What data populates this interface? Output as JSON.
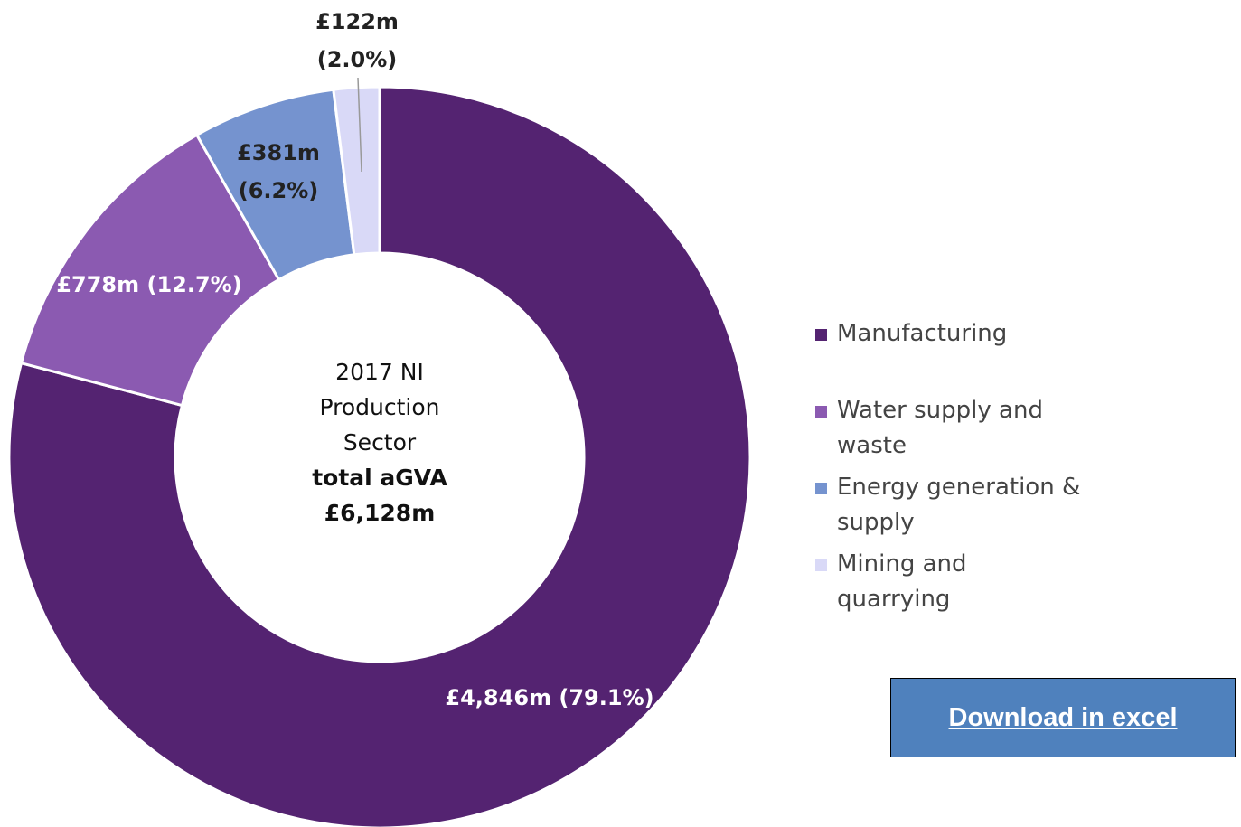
{
  "chart_data": {
    "type": "donut",
    "categories": [
      "Manufacturing",
      "Water supply and waste",
      "Energy generation & supply",
      "Mining and quarrying"
    ],
    "values": [
      4846,
      778,
      381,
      122
    ],
    "value_labels": [
      "£4,846m (79.1%)",
      "£778m (12.7%)",
      "£381m (6.2%)",
      "£122m (2.0%)"
    ],
    "colors": [
      "#542371",
      "#8b5ab1",
      "#7593cf",
      "#d9d9f7"
    ],
    "center_text": "2017 NI Production Sector",
    "center_label": "total aGVA",
    "center_value": "£6,128m",
    "legend": "right"
  },
  "button": {
    "label": "Download in excel"
  }
}
